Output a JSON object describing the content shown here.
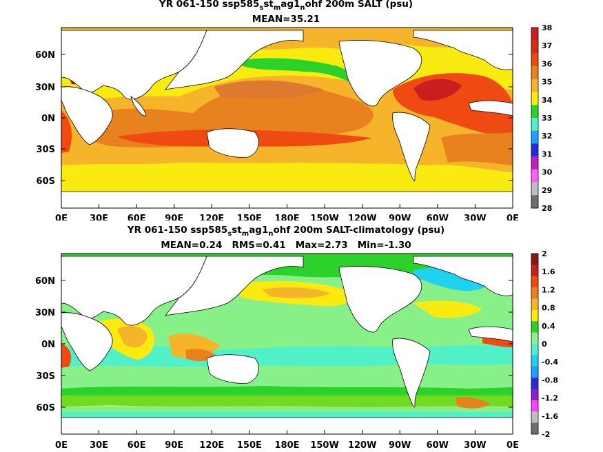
{
  "panels": [
    {
      "title_parts": [
        "YR 061-150 ssp585",
        "s",
        "st",
        "m",
        "ag1",
        "n",
        "ohf 200m SALT (psu)"
      ],
      "stats": "MEAN=35.21",
      "colorbar": {
        "labels": [
          "38",
          "37",
          "36",
          "35",
          "34",
          "33",
          "32",
          "31",
          "30",
          "29",
          "28"
        ],
        "colors": [
          "#c81e1e",
          "#dd2a12",
          "#ef4a12",
          "#e8821e",
          "#f5b42a",
          "#f9ea10",
          "#2ad22a",
          "#50f0c8",
          "#1ea0ff",
          "#2a2adc",
          "#c020c0",
          "#ff60ff",
          "#bebebe",
          "#6e6e6e"
        ]
      }
    },
    {
      "title_parts": [
        "YR 061-150 ssp585",
        "s",
        "st",
        "m",
        "ag1",
        "n",
        "ohf 200m SALT-climatology (psu)"
      ],
      "stats": "MEAN=0.24   RMS=0.41   Max=2.73   Min=-1.30",
      "colorbar": {
        "labels": [
          "2",
          "1.6",
          "1.2",
          "0.8",
          "0.4",
          "0",
          "-0.4",
          "-0.8",
          "-1.2",
          "-1.6",
          "-2"
        ],
        "colors": [
          "#8c1414",
          "#c81e1e",
          "#ef4a12",
          "#e8821e",
          "#f5b42a",
          "#f9ea10",
          "#2ad22a",
          "#88f088",
          "#50f0c8",
          "#1ed2f0",
          "#1ea0ff",
          "#2a2adc",
          "#8c20c8",
          "#ff40ff",
          "#bebebe",
          "#6e6e6e"
        ]
      }
    }
  ],
  "axes": {
    "lat_labels": [
      "60N",
      "30N",
      "0N",
      "30S",
      "60S"
    ],
    "lon_labels": [
      "0E",
      "30E",
      "60E",
      "90E",
      "120E",
      "150E",
      "180E",
      "150W",
      "120W",
      "90W",
      "60W",
      "30W",
      "0E"
    ]
  },
  "colors": {
    "land": "#ffffff",
    "coast": "#000000"
  }
}
